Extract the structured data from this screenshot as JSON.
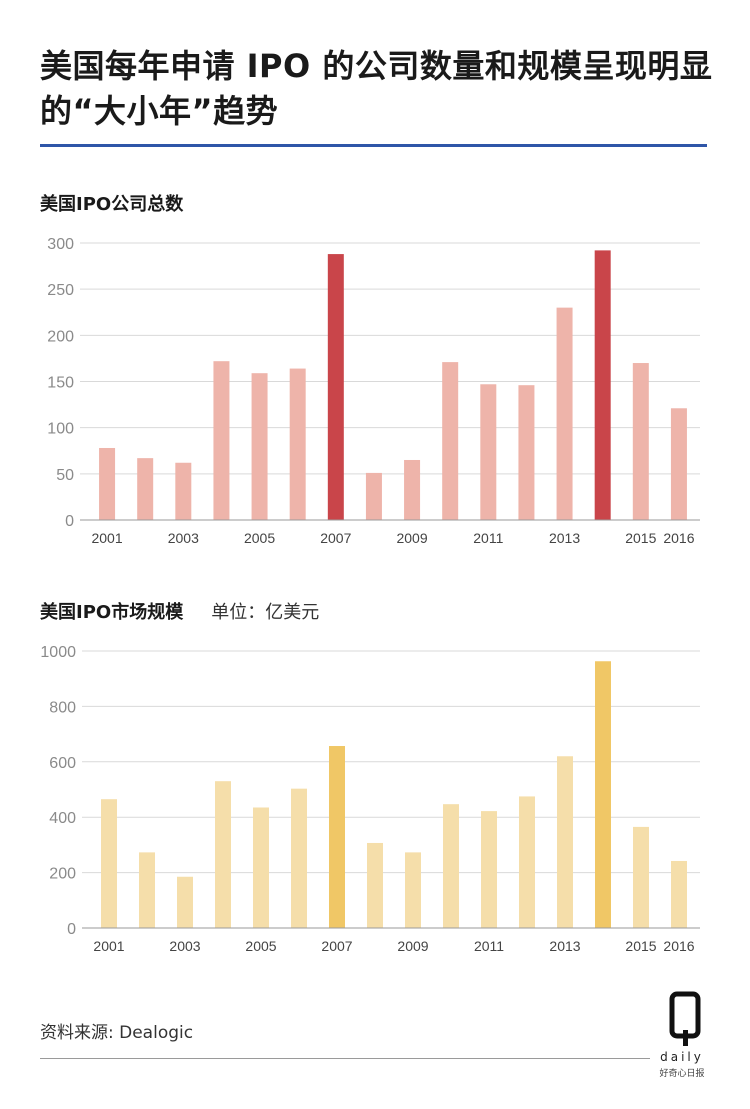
{
  "title": "美国每年申请 IPO 的公司数量和规模呈现明显的“大小年”趋势",
  "source": "资料来源: Dealogic",
  "logo": {
    "word": "daily",
    "tagline": "好奇心日报"
  },
  "chart_data": [
    {
      "type": "bar",
      "title": "美国IPO公司总数",
      "subtitle": "",
      "categories": [
        "2001",
        "2002",
        "2003",
        "2004",
        "2005",
        "2006",
        "2007",
        "2008",
        "2009",
        "2010",
        "2011",
        "2012",
        "2013",
        "2014",
        "2015",
        "2016"
      ],
      "x_tick_labels": [
        "2001",
        "",
        "2003",
        "",
        "2005",
        "",
        "2007",
        "",
        "2009",
        "",
        "2011",
        "",
        "2013",
        "",
        "2015",
        "2016"
      ],
      "values": [
        78,
        67,
        62,
        172,
        159,
        164,
        288,
        51,
        65,
        171,
        147,
        146,
        230,
        292,
        170,
        121
      ],
      "highlight": [
        "2007",
        "2014"
      ],
      "ylim": [
        0,
        300
      ],
      "yticks": [
        0,
        50,
        100,
        150,
        200,
        250,
        300
      ],
      "grid": true,
      "colors": {
        "normal": "#eeb4aa",
        "highlight": "#c9454a"
      }
    },
    {
      "type": "bar",
      "title": "美国IPO市场规模",
      "subtitle": "单位：亿美元",
      "categories": [
        "2001",
        "2002",
        "2003",
        "2004",
        "2005",
        "2006",
        "2007",
        "2008",
        "2009",
        "2010",
        "2011",
        "2012",
        "2013",
        "2014",
        "2015",
        "2016"
      ],
      "x_tick_labels": [
        "2001",
        "",
        "2003",
        "",
        "2005",
        "",
        "2007",
        "",
        "2009",
        "",
        "2011",
        "",
        "2013",
        "",
        "2015",
        "2016"
      ],
      "values": [
        465,
        273,
        185,
        530,
        435,
        503,
        657,
        307,
        273,
        447,
        422,
        475,
        620,
        963,
        365,
        242
      ],
      "highlight": [
        "2007",
        "2014"
      ],
      "ylim": [
        0,
        1000
      ],
      "yticks": [
        0,
        200,
        400,
        600,
        800,
        1000
      ],
      "grid": true,
      "colors": {
        "normal": "#f5deaa",
        "highlight": "#f0c766"
      }
    }
  ]
}
